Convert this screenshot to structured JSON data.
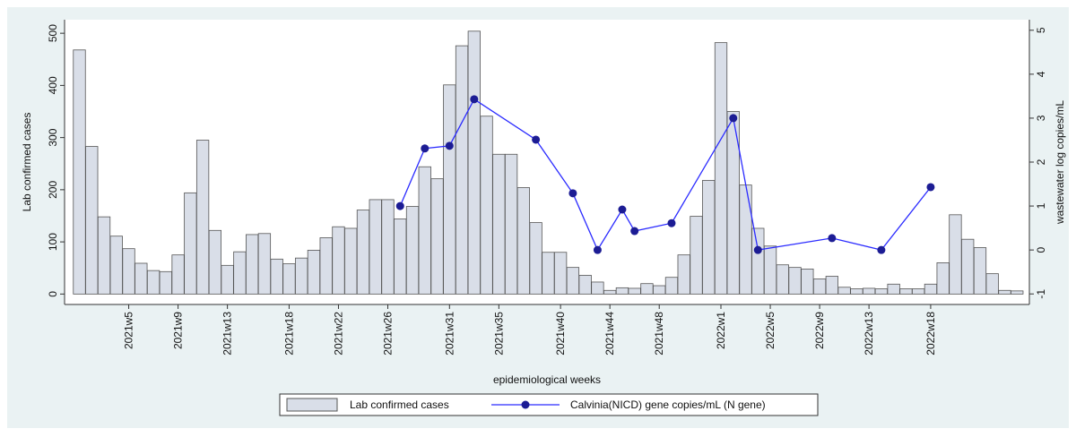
{
  "chart_data": {
    "type": "bar-line",
    "xlabel": "epidemiological weeks",
    "ylabel": "Lab confirmed cases",
    "y2label": "wastewater log copies/mL",
    "xlim": [
      -0.2,
      78
    ],
    "xticks": [
      {
        "value": 5,
        "label": "2021w5"
      },
      {
        "value": 9,
        "label": "2021w9"
      },
      {
        "value": 13,
        "label": "2021w13"
      },
      {
        "value": 18,
        "label": "2021w18"
      },
      {
        "value": 22,
        "label": "2021w22"
      },
      {
        "value": 26,
        "label": "2021w26"
      },
      {
        "value": 31,
        "label": "2021w31"
      },
      {
        "value": 35,
        "label": "2021w35"
      },
      {
        "value": 40,
        "label": "2021w40"
      },
      {
        "value": 44,
        "label": "2021w44"
      },
      {
        "value": 48,
        "label": "2021w48"
      },
      {
        "value": 53,
        "label": "2022w1"
      },
      {
        "value": 57,
        "label": "2022w5"
      },
      {
        "value": 61,
        "label": "2022w9"
      },
      {
        "value": 65,
        "label": "2022w13"
      },
      {
        "value": 70,
        "label": "2022w18"
      }
    ],
    "ylim": [
      -20,
      526
    ],
    "yticks": [
      0,
      100,
      200,
      300,
      400,
      500
    ],
    "y2lim": [
      -1.24,
      5.24
    ],
    "y2ticks": [
      -1,
      0,
      1,
      2,
      3,
      4,
      5
    ],
    "series": [
      {
        "name": "Lab confirmed cases",
        "type": "bar",
        "color": "#d9dee8",
        "x": [
          1,
          2,
          3,
          4,
          5,
          6,
          7,
          8,
          9,
          10,
          11,
          12,
          13,
          14,
          15,
          16,
          17,
          18,
          19,
          20,
          21,
          22,
          23,
          24,
          25,
          26,
          27,
          28,
          29,
          30,
          31,
          32,
          33,
          34,
          35,
          36,
          37,
          38,
          39,
          40,
          41,
          42,
          43,
          44,
          45,
          46,
          47,
          48,
          49,
          50,
          51,
          52,
          53,
          54,
          55,
          56,
          57,
          58,
          59,
          60,
          61,
          62,
          63,
          64,
          65,
          66,
          67,
          68,
          69,
          70,
          71,
          72,
          73,
          74,
          75,
          76,
          77
        ],
        "values": [
          468,
          283,
          148,
          111,
          87,
          59,
          45,
          43,
          75,
          194,
          295,
          122,
          55,
          81,
          114,
          116,
          67,
          58,
          69,
          84,
          108,
          129,
          126,
          161,
          181,
          181,
          144,
          168,
          244,
          221,
          401,
          476,
          504,
          341,
          268,
          268,
          204,
          137,
          80,
          80,
          51,
          36,
          23,
          7,
          12,
          11,
          20,
          16,
          32,
          75,
          149,
          218,
          482,
          350,
          209,
          126,
          92,
          56,
          51,
          48,
          29,
          34,
          13,
          10,
          11,
          10,
          19,
          10,
          10,
          19,
          60,
          152,
          105,
          89,
          39,
          7,
          6
        ]
      },
      {
        "name": "Calvinia(NICD) gene copies/mL (N gene)",
        "type": "line",
        "axis": "y2",
        "color": "#2a2aff",
        "marker_color": "#1c1c94",
        "x": [
          27,
          29,
          31,
          33,
          38,
          41,
          43,
          45,
          46,
          49,
          54,
          56,
          62,
          66,
          70
        ],
        "values": [
          1.0,
          2.31,
          2.37,
          3.43,
          2.51,
          1.29,
          0.0,
          0.92,
          0.43,
          0.61,
          3.0,
          0,
          0.27,
          0,
          1.43
        ]
      }
    ]
  }
}
